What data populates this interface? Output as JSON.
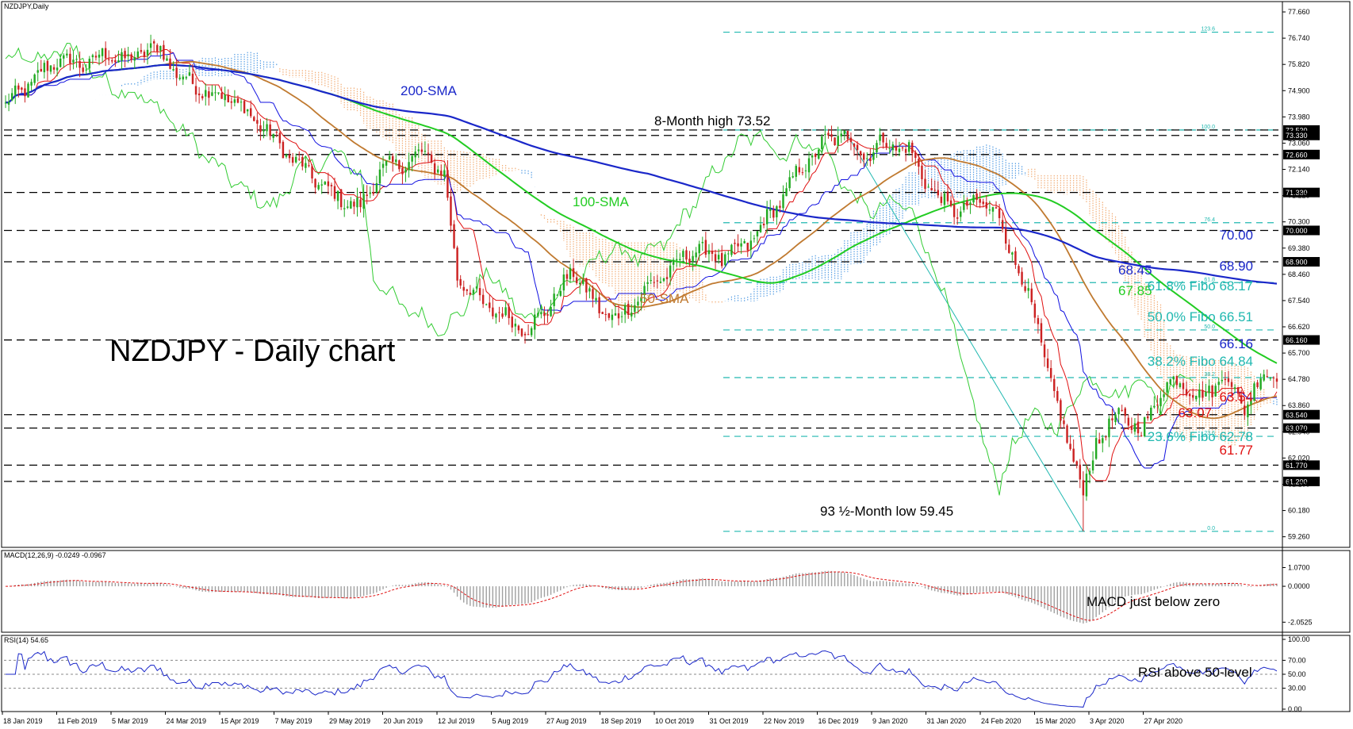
{
  "window": {
    "title": "NZDJPY,Daily"
  },
  "colors": {
    "sma200": "#1a27c9",
    "sma100": "#22cc22",
    "sma50": "#c07a30",
    "tenkan": "#e01010",
    "kijun": "#1010e0",
    "chikou": "#33cc33",
    "cloud_bull": "#3c8fe0",
    "cloud_bear": "#f0a060",
    "level_dash": "#000000",
    "fib_dash": "#20b8b0",
    "label_blue": "#1a27c9",
    "label_green": "#22cc22",
    "label_brown": "#c07a30",
    "label_teal": "#20b8b0",
    "label_red": "#e01010",
    "label_black": "#000000",
    "bull_candle": "#22aa22",
    "bear_candle": "#cc2222"
  },
  "chart_data": [
    {
      "type": "candlestick",
      "title": "NZDJPY - Daily chart",
      "symbol_label": "NZDJPY,Daily",
      "ylim": [
        59.0,
        77.8
      ],
      "y_ticks": [
        77.66,
        76.74,
        75.82,
        74.9,
        73.98,
        73.06,
        72.14,
        71.22,
        70.3,
        69.38,
        68.46,
        67.54,
        66.62,
        65.7,
        64.78,
        63.86,
        62.94,
        62.02,
        61.1,
        60.18,
        59.26
      ],
      "x_tick_labels": [
        "18 Jan 2019",
        "11 Feb 2019",
        "5 Mar 2019",
        "24 Mar 2019",
        "15 Apr 2019",
        "7 May 2019",
        "29 May 2019",
        "20 Jun 2019",
        "12 Jul 2019",
        "5 Aug 2019",
        "27 Aug 2019",
        "18 Sep 2019",
        "10 Oct 2019",
        "31 Oct 2019",
        "22 Nov 2019",
        "16 Dec 2019",
        "9 Jan 2020",
        "31 Jan 2020",
        "24 Feb 2020",
        "15 Mar 2020",
        "3 Apr 2020",
        "27 Apr 2020"
      ],
      "price_key_points": [
        [
          0,
          74.4
        ],
        [
          8,
          75.2
        ],
        [
          16,
          76.0
        ],
        [
          24,
          75.8
        ],
        [
          32,
          76.2
        ],
        [
          38,
          75.9
        ],
        [
          44,
          76.4
        ],
        [
          48,
          76.3
        ],
        [
          54,
          75.4
        ],
        [
          60,
          75.0
        ],
        [
          70,
          74.6
        ],
        [
          80,
          73.6
        ],
        [
          88,
          72.6
        ],
        [
          96,
          71.8
        ],
        [
          102,
          71.2
        ],
        [
          110,
          70.8
        ],
        [
          116,
          72.1
        ],
        [
          124,
          72.4
        ],
        [
          130,
          72.7
        ],
        [
          136,
          71.9
        ],
        [
          140,
          68.4
        ],
        [
          148,
          67.4
        ],
        [
          156,
          66.9
        ],
        [
          162,
          66.5
        ],
        [
          168,
          67.3
        ],
        [
          176,
          68.6
        ],
        [
          184,
          67.2
        ],
        [
          190,
          66.9
        ],
        [
          198,
          67.9
        ],
        [
          206,
          68.6
        ],
        [
          214,
          69.4
        ],
        [
          222,
          69.0
        ],
        [
          230,
          69.5
        ],
        [
          238,
          70.7
        ],
        [
          246,
          72.1
        ],
        [
          254,
          73.1
        ],
        [
          260,
          73.4
        ],
        [
          266,
          72.6
        ],
        [
          272,
          73.1
        ],
        [
          280,
          72.8
        ],
        [
          288,
          71.2
        ],
        [
          296,
          70.6
        ],
        [
          302,
          71.1
        ],
        [
          308,
          70.4
        ],
        [
          314,
          68.6
        ],
        [
          320,
          66.6
        ],
        [
          324,
          64.5
        ],
        [
          330,
          62.4
        ],
        [
          334,
          60.8
        ],
        [
          338,
          62.6
        ],
        [
          346,
          63.6
        ],
        [
          352,
          62.9
        ],
        [
          358,
          64.4
        ],
        [
          364,
          64.8
        ],
        [
          370,
          64.1
        ],
        [
          378,
          64.9
        ],
        [
          384,
          63.8
        ],
        [
          390,
          65.0
        ]
      ],
      "total_bars": 395,
      "horizontal_levels": [
        {
          "value": 73.52,
          "label": "73.520"
        },
        {
          "value": 73.33,
          "label": "73.330"
        },
        {
          "value": 72.66,
          "label": "72.660"
        },
        {
          "value": 71.33,
          "label": "71.330"
        },
        {
          "value": 70.0,
          "label": "70.000"
        },
        {
          "value": 68.9,
          "label": "68.900"
        },
        {
          "value": 66.16,
          "label": "66.160"
        },
        {
          "value": 63.54,
          "label": "63.540"
        },
        {
          "value": 63.07,
          "label": "63.070"
        },
        {
          "value": 61.77,
          "label": "61.770"
        },
        {
          "value": 61.2,
          "label": "61.200"
        }
      ],
      "fibonacci": {
        "levels": [
          {
            "ratio": "123.6",
            "value": 76.95
          },
          {
            "ratio": "100.0",
            "value": 73.52
          },
          {
            "ratio": "76.4",
            "value": 70.27
          },
          {
            "ratio": "61.8",
            "value": 68.17
          },
          {
            "ratio": "50.0",
            "value": 66.51
          },
          {
            "ratio": "38.2",
            "value": 64.84
          },
          {
            "ratio": "23.6",
            "value": 62.78
          },
          {
            "ratio": "0.0",
            "value": 59.45
          }
        ],
        "swing_high": {
          "bar": 260,
          "value": 73.52
        },
        "swing_low": {
          "bar": 334,
          "value": 59.45
        }
      },
      "annotations": {
        "sma200": "200-SMA",
        "sma100": "100-SMA",
        "sma50": "50-SMA",
        "high": "8-Month high 73.52",
        "low": "93 ½-Month low 59.45",
        "v70": "70.00",
        "v6890": "68.90",
        "v6845": "68.45",
        "v6785": "67.85",
        "fib618": "61.8% Fibo 68.17",
        "fib50": "50.0% Fibo 66.51",
        "v6616": "66.16",
        "fib382": "38.2% Fibo 64.84",
        "v6354": "63.54",
        "v6307": "63.07",
        "fib236": "23.6% Fibo 62.78",
        "v6177": "61.77"
      }
    },
    {
      "type": "histogram",
      "title": "MACD(12,26,9) -0.0249 -0.0967",
      "y_ticks": [
        1.07,
        0.0,
        -2.0525
      ],
      "ylim": [
        -2.4,
        1.5
      ],
      "annotation": "MACD just below zero"
    },
    {
      "type": "line",
      "title": "RSI(14) 54.65",
      "y_ticks": [
        100.0,
        70.0,
        50.0,
        30.0,
        0.0
      ],
      "ylim": [
        0,
        100
      ],
      "annotation": "RSI above 50-level"
    }
  ]
}
